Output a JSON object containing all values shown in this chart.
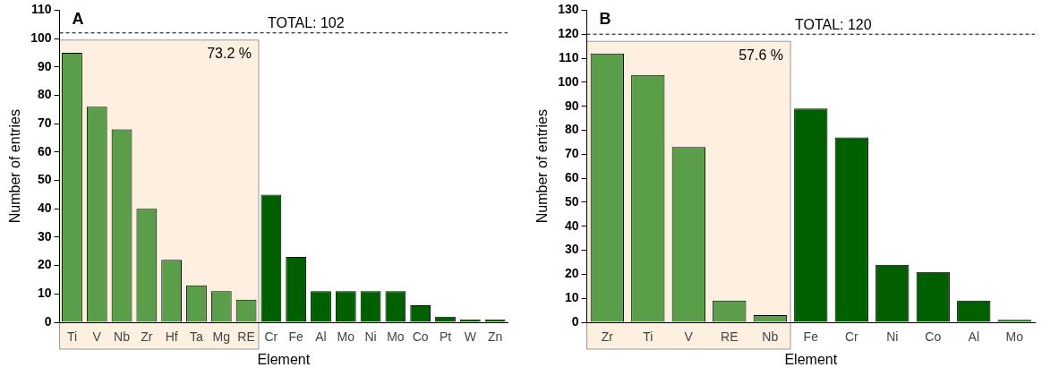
{
  "chart_data": [
    {
      "type": "bar",
      "title": "A",
      "xlabel": "Element",
      "ylabel": "Number of entries",
      "categories": [
        "Ti",
        "V",
        "Nb",
        "Zr",
        "Hf",
        "Ta",
        "Mg",
        "RE",
        "Cr",
        "Fe",
        "Al",
        "Mo",
        "Ni",
        "Mo",
        "Co",
        "Pt",
        "W",
        "Zn"
      ],
      "values": [
        95,
        76,
        68,
        40,
        22,
        13,
        11,
        8,
        45,
        23,
        11,
        11,
        11,
        11,
        6,
        2,
        1,
        1
      ],
      "colors": [
        "#5a9e4a",
        "#5a9e4a",
        "#5a9e4a",
        "#5a9e4a",
        "#5a9e4a",
        "#5a9e4a",
        "#5a9e4a",
        "#5a9e4a",
        "#006000",
        "#006000",
        "#006000",
        "#006000",
        "#006000",
        "#006000",
        "#006000",
        "#006000",
        "#006000",
        "#006000"
      ],
      "ylim": [
        0,
        110
      ],
      "yticks": [
        0,
        10,
        20,
        30,
        40,
        50,
        60,
        70,
        80,
        90,
        100,
        110
      ],
      "ref_lines": [
        {
          "axis": "y",
          "value": 102,
          "label": "TOTAL: 102",
          "line_style": "dashed",
          "color": "#000000"
        }
      ],
      "bands": [
        {
          "axis": "x",
          "from": "Ti",
          "to": "RE",
          "label": "73.2 %",
          "color": "#fdf0e0"
        }
      ]
    },
    {
      "type": "bar",
      "title": "B",
      "xlabel": "Element",
      "ylabel": "Number of entries",
      "categories": [
        "Zr",
        "Ti",
        "V",
        "RE",
        "Nb",
        "Fe",
        "Cr",
        "Ni",
        "Co",
        "Al",
        "Mo"
      ],
      "values": [
        112,
        103,
        73,
        9,
        3,
        89,
        77,
        24,
        21,
        9,
        1
      ],
      "colors": [
        "#5a9e4a",
        "#5a9e4a",
        "#5a9e4a",
        "#5a9e4a",
        "#5a9e4a",
        "#006000",
        "#006000",
        "#006000",
        "#006000",
        "#006000",
        "#006000"
      ],
      "ylim": [
        0,
        130
      ],
      "yticks": [
        0,
        10,
        20,
        30,
        40,
        50,
        60,
        70,
        80,
        90,
        100,
        110,
        120,
        130
      ],
      "ref_lines": [
        {
          "axis": "y",
          "value": 120,
          "label": "TOTAL: 120",
          "line_style": "dashed",
          "color": "#000000"
        }
      ],
      "bands": [
        {
          "axis": "x",
          "from": "Zr",
          "to": "Nb",
          "label": "57.6 %",
          "color": "#fdf0e0"
        }
      ]
    }
  ]
}
